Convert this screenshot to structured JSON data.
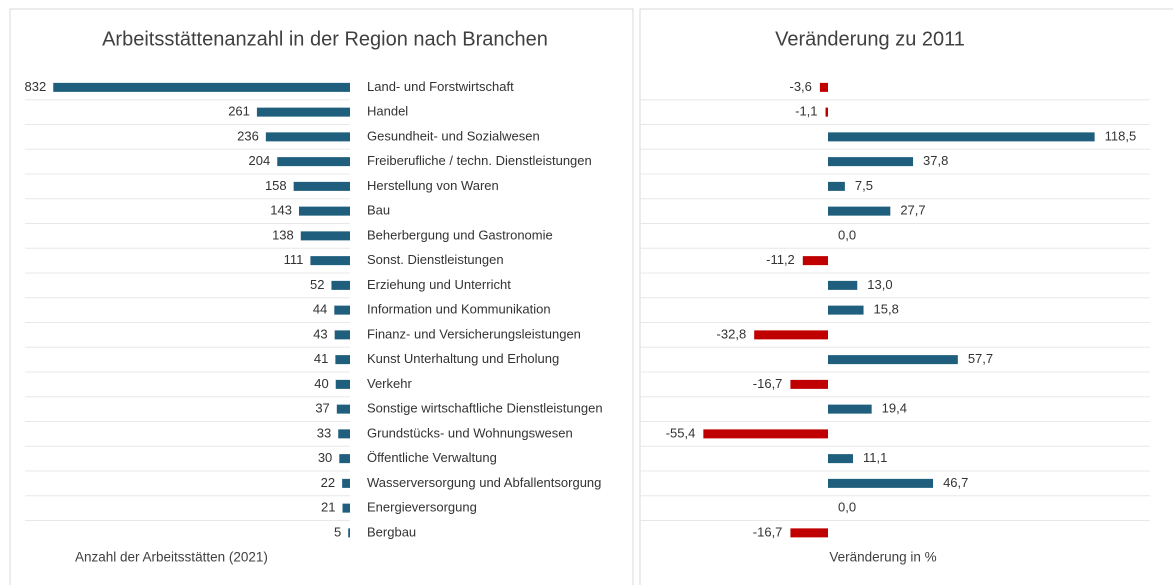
{
  "chart_data": [
    {
      "type": "bar",
      "orientation": "horizontal",
      "direction": "leftward",
      "title": "Arbeitsstättenanzahl in der Region nach Branchen",
      "xlabel": "Anzahl der Arbeitsstätten (2021)",
      "categories": [
        "Land- und Forstwirtschaft",
        "Handel",
        "Gesundheit- und Sozialwesen",
        "Freiberufliche / techn. Dienstleistungen",
        "Herstellung von Waren",
        "Bau",
        "Beherbergung und Gastronomie",
        "Sonst. Dienstleistungen",
        "Erziehung und Unterricht",
        "Information und Kommunikation",
        "Finanz- und Versicherungsleistungen",
        "Kunst Unterhaltung und Erholung",
        "Verkehr",
        "Sonstige wirtschaftliche Dienstleistungen",
        "Grundstücks- und Wohnungswesen",
        "Öffentliche Verwaltung",
        "Wasserversorgung und Abfallentsorgung",
        "Energieversorgung",
        "Bergbau"
      ],
      "values": [
        832,
        261,
        236,
        204,
        158,
        143,
        138,
        111,
        52,
        44,
        43,
        41,
        40,
        37,
        33,
        30,
        22,
        21,
        5
      ],
      "color": "#1f5f7d",
      "xlim": [
        0,
        900
      ]
    },
    {
      "type": "bar",
      "orientation": "horizontal",
      "title": "Veränderung zu 2011",
      "xlabel": "Veränderung in %",
      "values": [
        -3.6,
        -1.1,
        118.5,
        37.8,
        7.5,
        27.7,
        0.0,
        -11.2,
        13.0,
        15.8,
        -32.8,
        57.7,
        -16.7,
        19.4,
        -55.4,
        11.1,
        46.7,
        0.0,
        -16.7
      ],
      "value_labels": [
        "-3,6",
        "-1,1",
        "118,5",
        "37,8",
        "7,5",
        "27,7",
        "0,0",
        "-11,2",
        "13,0",
        "15,8",
        "-32,8",
        "57,7",
        "-16,7",
        "19,4",
        "-55,4",
        "11,1",
        "46,7",
        "0,0",
        "-16,7"
      ],
      "color": "#1f5f7d",
      "negative_color": "#c00000",
      "xlim": [
        -80,
        140
      ]
    }
  ]
}
